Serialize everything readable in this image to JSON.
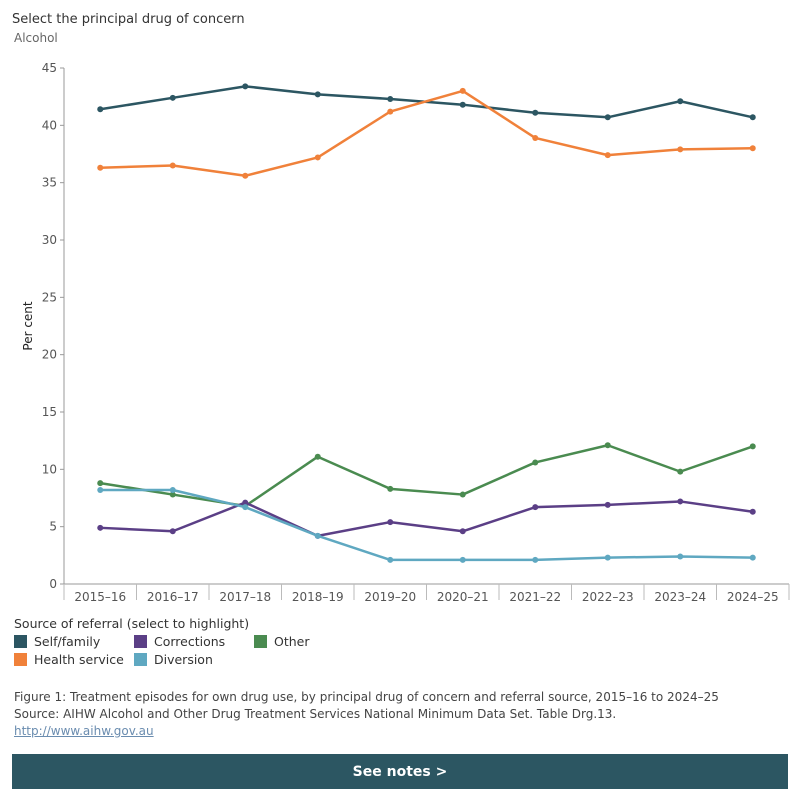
{
  "filter": {
    "label": "Select the principal drug of concern",
    "value": "Alcohol"
  },
  "legend": {
    "title": "Source of referral (select to highlight)",
    "items": [
      {
        "label": "Self/family",
        "color": "#2c5662"
      },
      {
        "label": "Corrections",
        "color": "#5b3f86"
      },
      {
        "label": "Other",
        "color": "#4a8b50"
      },
      {
        "label": "Health service",
        "color": "#f0813a"
      },
      {
        "label": "Diversion",
        "color": "#5fa8c1"
      }
    ]
  },
  "footer": {
    "caption": "Figure 1: Treatment episodes for own drug use, by principal drug of concern and referral source, 2015–16 to 2024–25",
    "source": "Source: AIHW Alcohol and Other Drug Treatment Services National Minimum Data Set. Table Drg.13.",
    "link": "http://www.aihw.gov.au"
  },
  "notes_button": "See notes >",
  "chart_data": {
    "type": "line",
    "ylabel": "Per cent",
    "xlabel": "",
    "ylim": [
      0,
      45
    ],
    "yticks": [
      0,
      5,
      10,
      15,
      20,
      25,
      30,
      35,
      40,
      45
    ],
    "grid": false,
    "categories": [
      "2015–16",
      "2016–17",
      "2017–18",
      "2018–19",
      "2019–20",
      "2020–21",
      "2021–22",
      "2022–23",
      "2023–24",
      "2024–25"
    ],
    "series": [
      {
        "name": "Self/family",
        "color": "#2c5662",
        "values": [
          41.4,
          42.4,
          43.4,
          42.7,
          42.3,
          41.8,
          41.1,
          40.7,
          42.1,
          40.7
        ]
      },
      {
        "name": "Health service",
        "color": "#f0813a",
        "values": [
          36.3,
          36.5,
          35.6,
          37.2,
          41.2,
          43.0,
          38.9,
          37.4,
          37.9,
          38.0
        ]
      },
      {
        "name": "Other",
        "color": "#4a8b50",
        "values": [
          8.8,
          7.8,
          6.8,
          11.1,
          8.3,
          7.8,
          10.6,
          12.1,
          9.8,
          12.0
        ]
      },
      {
        "name": "Corrections",
        "color": "#5b3f86",
        "values": [
          4.9,
          4.6,
          7.1,
          4.2,
          5.4,
          4.6,
          6.7,
          6.9,
          7.2,
          6.3
        ]
      },
      {
        "name": "Diversion",
        "color": "#5fa8c1",
        "values": [
          8.2,
          8.2,
          6.7,
          4.2,
          2.1,
          2.1,
          2.1,
          2.3,
          2.4,
          2.3
        ]
      }
    ]
  }
}
